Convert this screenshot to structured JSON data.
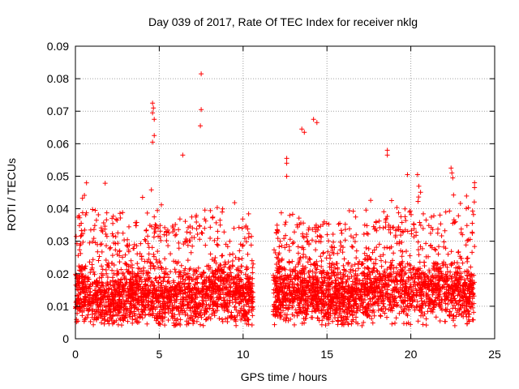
{
  "chart_data": {
    "type": "scatter",
    "title": "Day 039 of 2017, Rate Of TEC Index for receiver nklg",
    "xlabel": "GPS time / hours",
    "ylabel": "ROTI / TECUs",
    "xlim": [
      0,
      25
    ],
    "ylim": [
      0,
      0.09
    ],
    "x_ticks": [
      "0",
      "5",
      "10",
      "15",
      "20",
      "25"
    ],
    "y_ticks": [
      "0",
      "0.01",
      "0.02",
      "0.03",
      "0.04",
      "0.05",
      "0.06",
      "0.07",
      "0.08",
      "0.09"
    ],
    "grid": true,
    "marker": "+",
    "color": "#ff0000",
    "data_gap_hours": [
      10.6,
      11.8
    ],
    "series": [
      {
        "name": "ROTI",
        "segments": [
          {
            "x_start": 0.0,
            "x_end": 10.6
          },
          {
            "x_start": 11.8,
            "x_end": 23.8
          }
        ],
        "envelope": [
          {
            "x": 0.0,
            "typical": 0.014,
            "upper": 0.046
          },
          {
            "x": 1.0,
            "typical": 0.013,
            "upper": 0.049
          },
          {
            "x": 2.0,
            "typical": 0.012,
            "upper": 0.049
          },
          {
            "x": 3.0,
            "typical": 0.013,
            "upper": 0.044
          },
          {
            "x": 4.0,
            "typical": 0.014,
            "upper": 0.048
          },
          {
            "x": 5.0,
            "typical": 0.012,
            "upper": 0.045
          },
          {
            "x": 6.0,
            "typical": 0.012,
            "upper": 0.042
          },
          {
            "x": 7.0,
            "typical": 0.013,
            "upper": 0.047
          },
          {
            "x": 8.0,
            "typical": 0.014,
            "upper": 0.051
          },
          {
            "x": 9.0,
            "typical": 0.015,
            "upper": 0.049
          },
          {
            "x": 10.0,
            "typical": 0.013,
            "upper": 0.045
          },
          {
            "x": 10.6,
            "typical": 0.012,
            "upper": 0.037
          },
          {
            "x": 11.8,
            "typical": 0.013,
            "upper": 0.039
          },
          {
            "x": 13.0,
            "typical": 0.014,
            "upper": 0.047
          },
          {
            "x": 14.0,
            "typical": 0.014,
            "upper": 0.043
          },
          {
            "x": 15.0,
            "typical": 0.013,
            "upper": 0.044
          },
          {
            "x": 16.0,
            "typical": 0.013,
            "upper": 0.043
          },
          {
            "x": 17.0,
            "typical": 0.014,
            "upper": 0.044
          },
          {
            "x": 18.0,
            "typical": 0.015,
            "upper": 0.047
          },
          {
            "x": 19.0,
            "typical": 0.015,
            "upper": 0.05
          },
          {
            "x": 20.0,
            "typical": 0.015,
            "upper": 0.049
          },
          {
            "x": 21.0,
            "typical": 0.015,
            "upper": 0.046
          },
          {
            "x": 22.0,
            "typical": 0.015,
            "upper": 0.047
          },
          {
            "x": 23.0,
            "typical": 0.014,
            "upper": 0.052
          },
          {
            "x": 23.8,
            "typical": 0.013,
            "upper": 0.048
          }
        ],
        "notable_points": [
          {
            "x": 4.6,
            "y": 0.0725
          },
          {
            "x": 4.65,
            "y": 0.071
          },
          {
            "x": 4.6,
            "y": 0.0695
          },
          {
            "x": 4.7,
            "y": 0.0675
          },
          {
            "x": 4.6,
            "y": 0.0605
          },
          {
            "x": 4.7,
            "y": 0.0625
          },
          {
            "x": 6.4,
            "y": 0.0565
          },
          {
            "x": 7.5,
            "y": 0.0815
          },
          {
            "x": 7.5,
            "y": 0.0705
          },
          {
            "x": 7.45,
            "y": 0.0655
          },
          {
            "x": 12.6,
            "y": 0.0555
          },
          {
            "x": 12.6,
            "y": 0.054
          },
          {
            "x": 12.6,
            "y": 0.05
          },
          {
            "x": 13.5,
            "y": 0.0645
          },
          {
            "x": 13.65,
            "y": 0.0635
          },
          {
            "x": 14.2,
            "y": 0.0675
          },
          {
            "x": 14.4,
            "y": 0.0665
          },
          {
            "x": 18.6,
            "y": 0.058
          },
          {
            "x": 18.6,
            "y": 0.0565
          },
          {
            "x": 19.8,
            "y": 0.0505
          },
          {
            "x": 20.4,
            "y": 0.0505
          },
          {
            "x": 22.4,
            "y": 0.0525
          },
          {
            "x": 22.45,
            "y": 0.051
          },
          {
            "x": 22.5,
            "y": 0.0495
          },
          {
            "x": 23.8,
            "y": 0.048
          },
          {
            "x": 23.8,
            "y": 0.0465
          }
        ]
      }
    ]
  }
}
